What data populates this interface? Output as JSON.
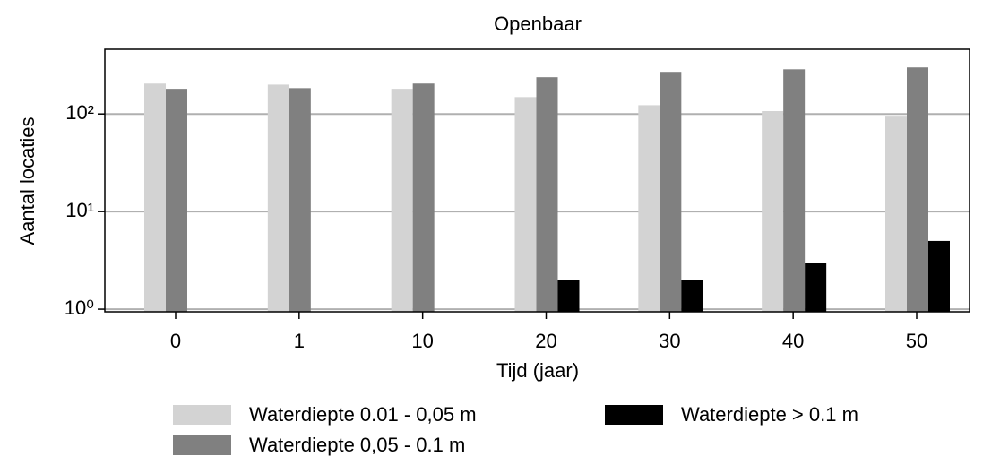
{
  "chart_data": {
    "type": "bar",
    "title": "Openbaar",
    "xlabel": "Tijd (jaar)",
    "ylabel": "Aantal locaties",
    "categories": [
      "0",
      "1",
      "10",
      "20",
      "30",
      "40",
      "50"
    ],
    "series": [
      {
        "name": "Waterdiepte 0.01 - 0,05 m",
        "color": "#d3d3d3",
        "values": [
          205,
          200,
          181,
          149,
          123,
          107,
          94
        ]
      },
      {
        "name": "Waterdiepte 0,05 - 0.1 m",
        "color": "#808080",
        "values": [
          181,
          184,
          205,
          238,
          270,
          287,
          300
        ]
      },
      {
        "name": "Waterdiepte > 0.1 m",
        "color": "#000000",
        "values": [
          null,
          null,
          null,
          2,
          2,
          3,
          5
        ]
      }
    ],
    "log_scale": true,
    "ylim": [
      0.94,
      460
    ],
    "yticks": [
      {
        "value": 1,
        "label": "10⁰"
      },
      {
        "value": 10,
        "label": "10¹"
      },
      {
        "value": 100,
        "label": "10²"
      }
    ],
    "grid": true,
    "legend": "bottom"
  }
}
